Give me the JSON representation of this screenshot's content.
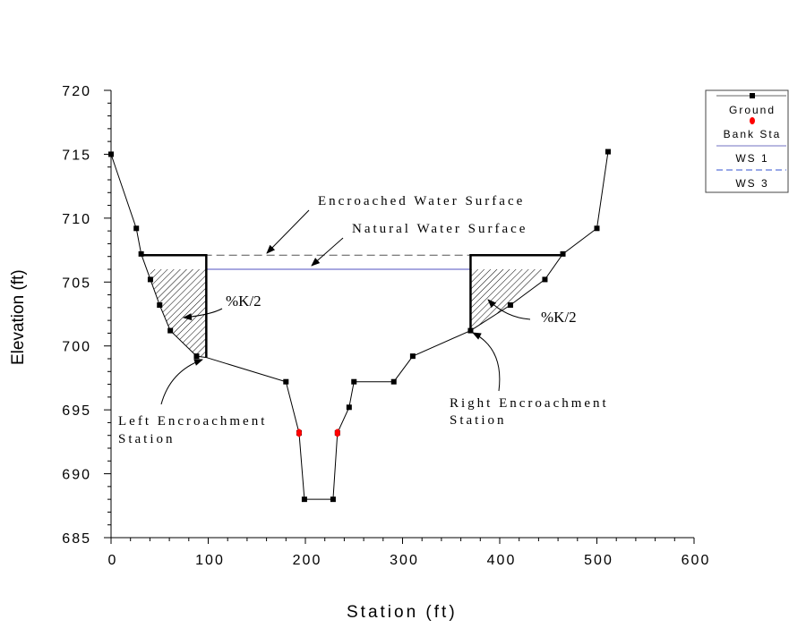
{
  "chart_data": {
    "type": "line",
    "title": "",
    "xlabel": "Station (ft)",
    "ylabel": "Elevation (ft)",
    "xlim": [
      0,
      600
    ],
    "ylim": [
      685,
      720
    ],
    "xticks": [
      0,
      100,
      200,
      300,
      400,
      500,
      600
    ],
    "yticks": [
      685,
      690,
      695,
      700,
      705,
      710,
      715,
      720
    ],
    "grid": false,
    "legend_position": "top-right",
    "series": [
      {
        "name": "Ground",
        "color": "#000000",
        "marker": "square",
        "x": [
          0,
          26,
          31,
          40.5,
          50,
          61,
          88,
          98,
          180,
          193.5,
          199,
          228.5,
          233,
          245,
          250,
          291,
          310.5,
          370,
          411,
          446.5,
          465,
          500,
          511.5
        ],
        "y": [
          715.0,
          709.2,
          707.2,
          705.2,
          703.2,
          701.2,
          699.2,
          699.1,
          697.2,
          693.2,
          688.0,
          688.0,
          693.2,
          695.2,
          697.2,
          697.2,
          699.2,
          701.2,
          703.2,
          705.2,
          707.2,
          709.2,
          715.2
        ]
      },
      {
        "name": "Bank Sta",
        "color": "#ff0000",
        "marker": "circle",
        "x": [
          193.5,
          233
        ],
        "y": [
          693.2,
          693.2
        ]
      },
      {
        "name": "WS 1",
        "color": "#5050c0",
        "style": "solid",
        "x": [
          40,
          446
        ],
        "y": [
          706.0,
          706.0
        ]
      },
      {
        "name": "WS 3",
        "color": "#555555",
        "style": "dashed",
        "x": [
          31,
          465
        ],
        "y": [
          707.1,
          707.1
        ]
      }
    ],
    "encroachments": {
      "left_station": 98,
      "right_station": 370,
      "elevation": 707.1
    },
    "annotations": {
      "encroached": "Encroached Water Surface",
      "natural": "Natural Water Surface",
      "k_left": "%K/2",
      "k_right": "%K/2",
      "left_station_1": "Left Encroachment",
      "left_station_2": "Station",
      "right_station_1": "Right Encroachment",
      "right_station_2": "Station"
    },
    "legend": {
      "ground": "Ground",
      "bank": "Bank Sta",
      "ws1": "WS 1",
      "ws3": "WS 3",
      "ws3_legend_color": "#3050d0"
    }
  }
}
